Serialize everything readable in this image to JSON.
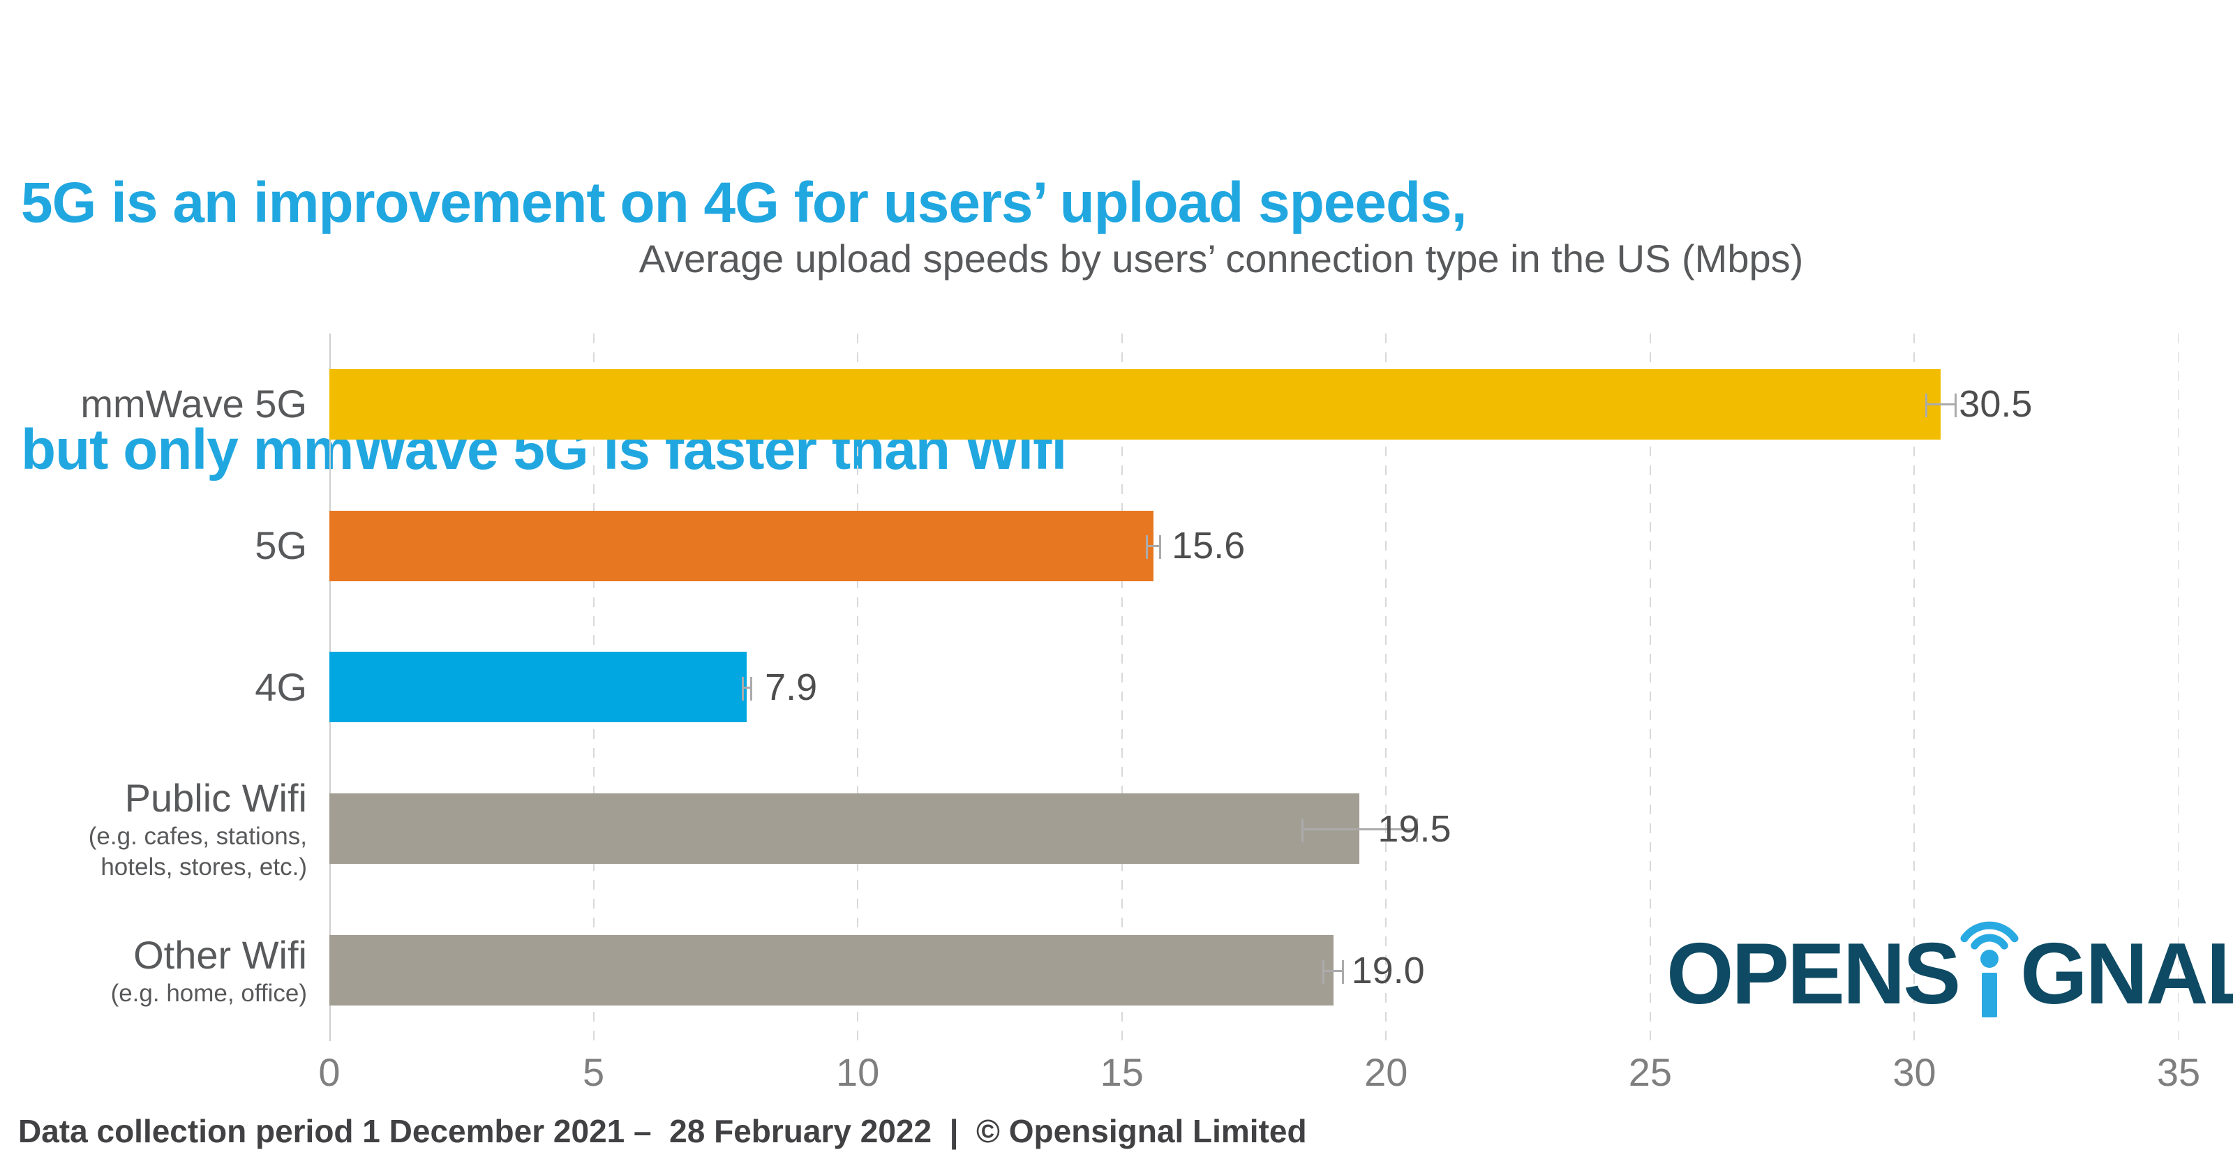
{
  "title": {
    "line1": "5G is an improvement on 4G for users’ upload speeds,",
    "line2": "but only mmWave 5G is faster than Wifi"
  },
  "subtitle": "Average upload speeds by users’ connection type in the US (Mbps)",
  "footer": "Data collection period 1 December 2021 –  28 February 2022  |  © Opensignal Limited",
  "logo": {
    "part1": "OPENS",
    "part2": "GNAL",
    "brand": "Opensignal"
  },
  "colors": {
    "title": "#21A7E0",
    "subtitle_text": "#58595B",
    "tick_text": "#7F7F7F",
    "value_text": "#4D4D4D",
    "grid": "#D9D9D9",
    "zero_line": "#CFCFCF",
    "whisker": "#ABABAB",
    "logo_dark": "#0E4A63",
    "logo_blue": "#29A9E1"
  },
  "chart_data": {
    "type": "bar",
    "orientation": "horizontal",
    "title": "Average upload speeds by users’ connection type in the US (Mbps)",
    "categories": [
      "mmWave 5G",
      "5G",
      "4G",
      "Public Wifi",
      "Other Wifi"
    ],
    "sublabels": [
      [],
      [],
      [],
      [
        "(e.g. cafes, stations,",
        "hotels, stores, etc.)"
      ],
      [
        "(e.g. home, office)"
      ]
    ],
    "values": [
      30.5,
      15.6,
      7.9,
      19.5,
      19.0
    ],
    "value_labels": [
      "30.5",
      "15.6",
      "7.9",
      "19.5",
      "19.0"
    ],
    "error_bars": [
      0.3,
      0.15,
      0.1,
      1.1,
      0.2
    ],
    "bar_colors": [
      "#F2BC00",
      "#E87722",
      "#00A7E0",
      "#A39E93",
      "#A39E93"
    ],
    "xlabel": "",
    "ylabel": "",
    "xlim": [
      0,
      35
    ],
    "xticks": [
      0,
      5,
      10,
      15,
      20,
      25,
      30,
      35
    ],
    "grid": "vertical-dashed",
    "legend": "none"
  }
}
